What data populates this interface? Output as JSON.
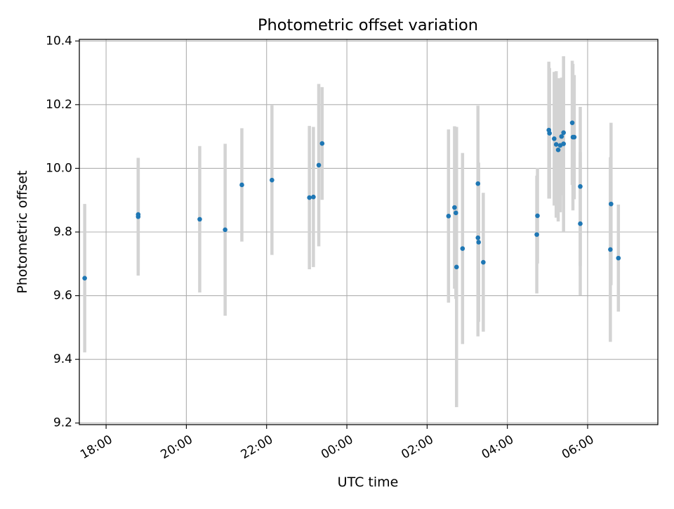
{
  "chart_data": {
    "type": "scatter",
    "title": "Photometric offset variation",
    "xlabel": "UTC time",
    "ylabel": "Photometric offset",
    "x_axis_kind": "time",
    "xlim": [
      "17:20",
      "07:45"
    ],
    "ylim": [
      9.195,
      10.405
    ],
    "x_ticks": [
      "18:00",
      "20:00",
      "22:00",
      "00:00",
      "02:00",
      "04:00",
      "06:00"
    ],
    "y_ticks": [
      "9.2",
      "9.4",
      "9.6",
      "9.8",
      "10.0",
      "10.2",
      "10.4"
    ],
    "grid": true,
    "point_color": "#1f77b4",
    "errorbar_color": "#d3d3d3",
    "series": [
      {
        "points": [
          {
            "x": "17:28",
            "y": 9.655,
            "err": 0.233
          },
          {
            "x": "18:48",
            "y": 9.855,
            "err": 0.175
          },
          {
            "x": "18:48",
            "y": 9.848,
            "err": 0.185
          },
          {
            "x": "20:20",
            "y": 9.84,
            "err": 0.23
          },
          {
            "x": "20:58",
            "y": 9.807,
            "err": 0.27
          },
          {
            "x": "21:23",
            "y": 9.948,
            "err": 0.178
          },
          {
            "x": "22:08",
            "y": 9.963,
            "err": 0.235
          },
          {
            "x": "23:04",
            "y": 9.908,
            "err": 0.225
          },
          {
            "x": "23:10",
            "y": 9.91,
            "err": 0.22
          },
          {
            "x": "23:18",
            "y": 10.01,
            "err": 0.255
          },
          {
            "x": "23:23",
            "y": 10.078,
            "err": 0.177
          },
          {
            "x": "02:32",
            "y": 9.85,
            "err": 0.272
          },
          {
            "x": "02:41",
            "y": 9.877,
            "err": 0.255
          },
          {
            "x": "02:43",
            "y": 9.86,
            "err": 0.27
          },
          {
            "x": "02:44",
            "y": 9.69,
            "err": 0.44
          },
          {
            "x": "02:53",
            "y": 9.748,
            "err": 0.3
          },
          {
            "x": "03:16",
            "y": 9.952,
            "err": 0.245
          },
          {
            "x": "03:16",
            "y": 9.782,
            "err": 0.31
          },
          {
            "x": "03:17",
            "y": 9.768,
            "err": 0.25
          },
          {
            "x": "03:24",
            "y": 9.705,
            "err": 0.218
          },
          {
            "x": "04:44",
            "y": 9.792,
            "err": 0.185
          },
          {
            "x": "04:45",
            "y": 9.851,
            "err": 0.15
          },
          {
            "x": "05:02",
            "y": 10.12,
            "err": 0.215
          },
          {
            "x": "05:03",
            "y": 10.11,
            "err": 0.205
          },
          {
            "x": "05:10",
            "y": 10.093,
            "err": 0.21
          },
          {
            "x": "05:13",
            "y": 10.075,
            "err": 0.23
          },
          {
            "x": "05:16",
            "y": 10.058,
            "err": 0.225
          },
          {
            "x": "05:19",
            "y": 10.072,
            "err": 0.21
          },
          {
            "x": "05:21",
            "y": 10.1,
            "err": 0.185
          },
          {
            "x": "05:24",
            "y": 10.112,
            "err": 0.24
          },
          {
            "x": "05:24",
            "y": 10.077,
            "err": 0.275
          },
          {
            "x": "05:37",
            "y": 10.143,
            "err": 0.195
          },
          {
            "x": "05:38",
            "y": 10.098,
            "err": 0.23
          },
          {
            "x": "05:40",
            "y": 10.098,
            "err": 0.195
          },
          {
            "x": "05:49",
            "y": 9.943,
            "err": 0.25
          },
          {
            "x": "05:49",
            "y": 9.826,
            "err": 0.225
          },
          {
            "x": "06:34",
            "y": 9.745,
            "err": 0.29
          },
          {
            "x": "06:35",
            "y": 9.888,
            "err": 0.255
          },
          {
            "x": "06:46",
            "y": 9.718,
            "err": 0.168
          }
        ]
      }
    ]
  }
}
